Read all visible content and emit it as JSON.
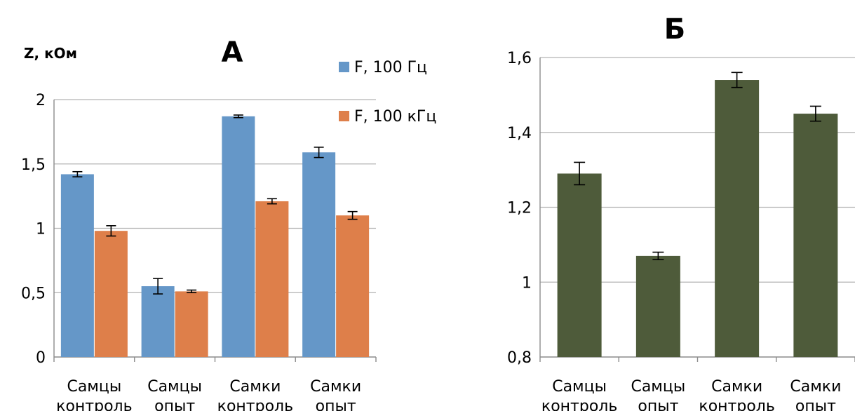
{
  "chart_data": [
    {
      "type": "bar",
      "title": "А",
      "ylabel": "Z, кОм",
      "xlabel": "",
      "categories": [
        [
          "Самцы",
          "контроль"
        ],
        [
          "Самцы",
          "опыт"
        ],
        [
          "Самки",
          "контроль"
        ],
        [
          "Самки",
          "опыт"
        ]
      ],
      "ylim": [
        0,
        2
      ],
      "yticks": [
        0,
        0.5,
        1,
        1.5,
        2
      ],
      "ytick_labels": [
        "0",
        "0,5",
        "1",
        "1,5",
        "2"
      ],
      "grid": true,
      "legend": "top-right",
      "series": [
        {
          "name": "F, 100 Гц",
          "color": "#6597C8",
          "values": [
            1.42,
            0.55,
            1.87,
            1.59
          ],
          "errors": [
            0.02,
            0.06,
            0.01,
            0.04
          ]
        },
        {
          "name": "F, 100 кГц",
          "color": "#DE7F4A",
          "values": [
            0.98,
            0.51,
            1.21,
            1.1
          ],
          "errors": [
            0.04,
            0.01,
            0.02,
            0.03
          ]
        }
      ]
    },
    {
      "type": "bar",
      "title": "Б",
      "ylabel": "",
      "xlabel": "",
      "categories": [
        [
          "Самцы",
          "контроль"
        ],
        [
          "Самцы",
          "опыт"
        ],
        [
          "Самки",
          "контроль"
        ],
        [
          "Самки",
          "опыт"
        ]
      ],
      "ylim": [
        0.8,
        1.6
      ],
      "yticks": [
        0.8,
        1.0,
        1.2,
        1.4,
        1.6
      ],
      "ytick_labels": [
        "0,8",
        "1",
        "1,2",
        "1,4",
        "1,6"
      ],
      "grid": true,
      "legend": "none",
      "series": [
        {
          "name": "",
          "color": "#4E5B3A",
          "values": [
            1.29,
            1.07,
            1.54,
            1.45
          ],
          "errors": [
            0.03,
            0.01,
            0.02,
            0.02
          ]
        }
      ]
    }
  ]
}
